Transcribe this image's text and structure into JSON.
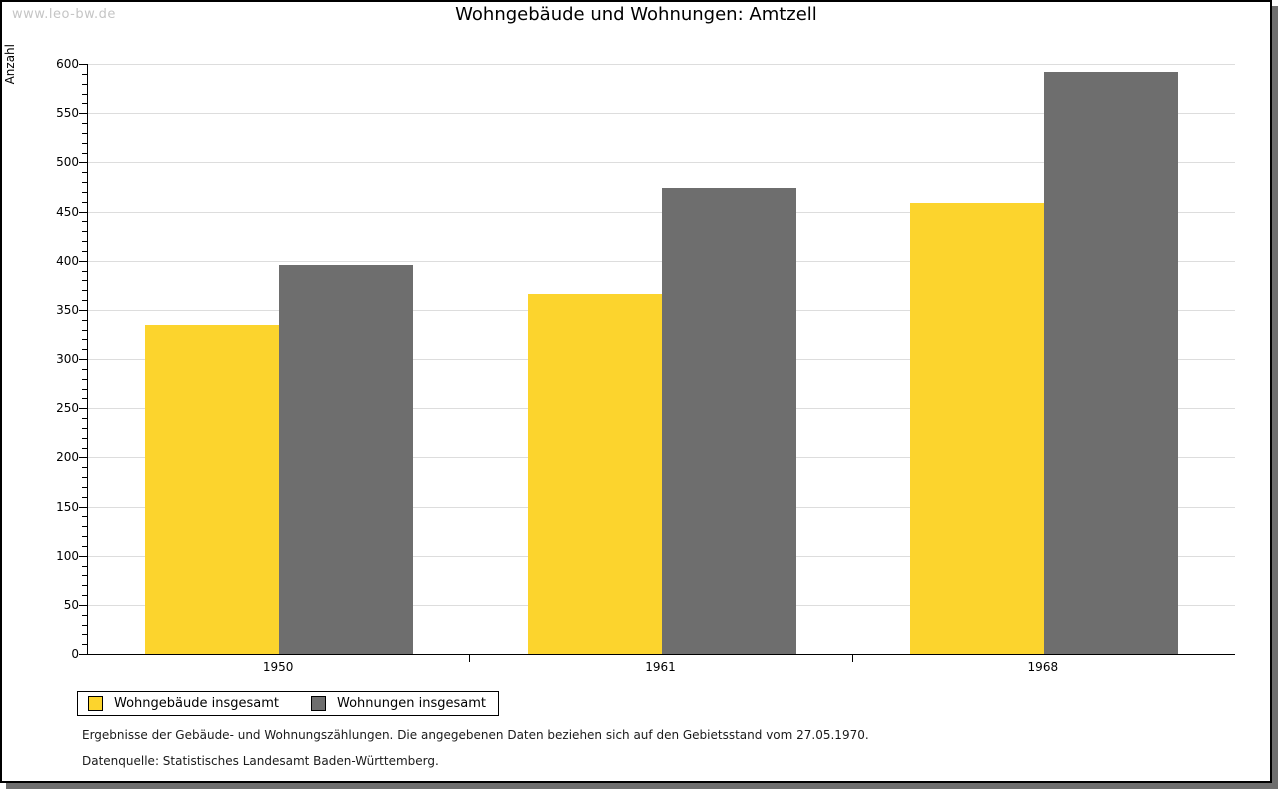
{
  "watermark": "www.leo-bw.de",
  "title": "Wohngebäude und Wohnungen: Amtzell",
  "chart_data": {
    "type": "bar",
    "title": "Wohngebäude und Wohnungen: Amtzell",
    "xlabel": "",
    "ylabel": "Anzahl",
    "categories": [
      "1950",
      "1961",
      "1968"
    ],
    "series": [
      {
        "name": "Wohngebäude insgesamt",
        "color": "#fcd42d",
        "values": [
          335,
          366,
          459
        ]
      },
      {
        "name": "Wohnungen insgesamt",
        "color": "#6e6e6e",
        "values": [
          396,
          474,
          592
        ]
      }
    ],
    "ylim": [
      0,
      600
    ],
    "y_major_step": 50,
    "y_minor_step": 10,
    "grid": "horizontal-major",
    "gridline_color": "#dddddd",
    "legend_position": "bottom-left"
  },
  "footnotes": [
    "Ergebnisse der Gebäude- und Wohnungszählungen. Die angegebenen Daten beziehen sich auf den Gebietsstand vom 27.05.1970.",
    "Datenquelle: Statistisches Landesamt Baden-Württemberg."
  ],
  "colors": {
    "frame_border": "#000000",
    "frame_shadow": "#6e6e6e",
    "watermark": "#c5c5c5",
    "series_1": "#fcd42d",
    "series_2": "#6e6e6e"
  }
}
